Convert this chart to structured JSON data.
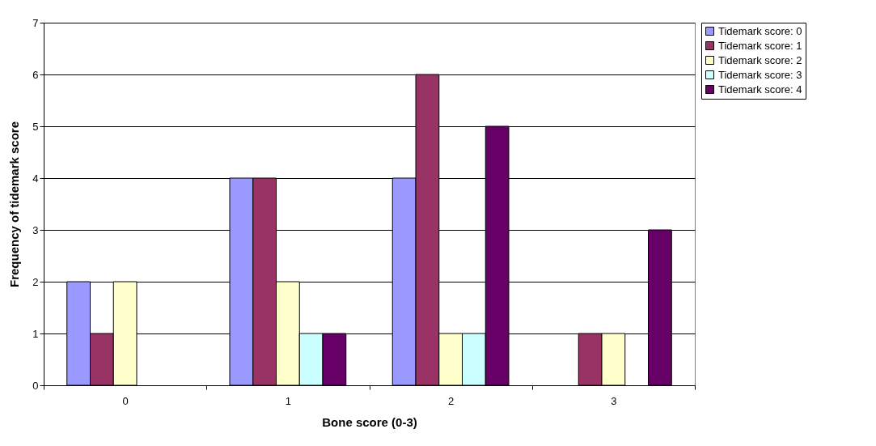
{
  "chart_data": {
    "type": "bar",
    "xlabel": "Bone score (0-3)",
    "ylabel": "Frequency of tidemark score",
    "categories": [
      "0",
      "1",
      "2",
      "3"
    ],
    "series": [
      {
        "name": "Tidemark score: 0",
        "color": "#9999ff",
        "values": [
          2,
          4,
          4,
          null
        ]
      },
      {
        "name": "Tidemark score: 1",
        "color": "#993366",
        "values": [
          1,
          4,
          6,
          1
        ]
      },
      {
        "name": "Tidemark score: 2",
        "color": "#ffffcc",
        "values": [
          2,
          2,
          1,
          1
        ]
      },
      {
        "name": "Tidemark score: 3",
        "color": "#ccffff",
        "values": [
          null,
          1,
          1,
          null
        ]
      },
      {
        "name": "Tidemark score: 4",
        "color": "#660066",
        "values": [
          null,
          1,
          5,
          3
        ]
      }
    ],
    "ylim": [
      0,
      7
    ],
    "yticks": [
      0,
      1,
      2,
      3,
      4,
      5,
      6,
      7
    ],
    "grid": "y",
    "legend": "top right"
  }
}
